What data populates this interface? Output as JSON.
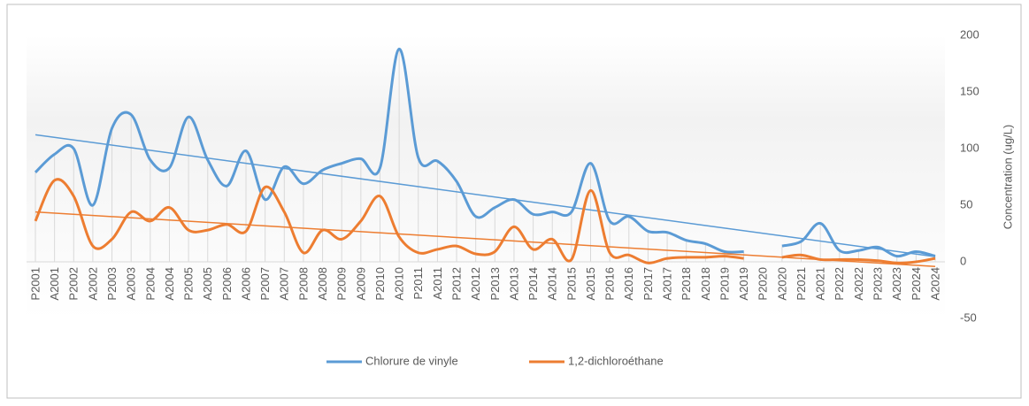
{
  "chart_data": {
    "type": "line",
    "y_axis_label": "Concentration (ug/L)",
    "categories": [
      "P2001",
      "A2001",
      "P2002",
      "A2002",
      "P2003",
      "A2003",
      "P2004",
      "A2004",
      "P2005",
      "A2005",
      "P2006",
      "A2006",
      "P2007",
      "A2007",
      "P2008",
      "A2008",
      "P2009",
      "A2009",
      "P2010",
      "A2010",
      "P2011",
      "A2011",
      "P2012",
      "A2012",
      "P2013",
      "A2013",
      "P2014",
      "A2014",
      "P2015",
      "A2015",
      "P2016",
      "A2016",
      "P2017",
      "A2017",
      "P2018",
      "A2018",
      "P2019",
      "A2019",
      "P2020",
      "A2020",
      "P2021",
      "A2021",
      "P2022",
      "A2022",
      "P2023",
      "A2023",
      "P2024",
      "A2024"
    ],
    "series": [
      {
        "name": "Chlorure de vinyle",
        "color": "#5b9bd5",
        "values": [
          79,
          95,
          100,
          50,
          118,
          130,
          90,
          83,
          128,
          90,
          67,
          98,
          55,
          84,
          69,
          81,
          87,
          91,
          83,
          188,
          92,
          89,
          71,
          40,
          48,
          55,
          42,
          44,
          44,
          87,
          36,
          40,
          27,
          26,
          19,
          16,
          9,
          9,
          null,
          14,
          18,
          34,
          10,
          10,
          13,
          5,
          9,
          5
        ]
      },
      {
        "name": "1,2-dichloroéthane",
        "color": "#ed7d31",
        "values": [
          36,
          72,
          58,
          14,
          20,
          44,
          36,
          48,
          28,
          28,
          33,
          27,
          66,
          44,
          8,
          28,
          20,
          36,
          58,
          22,
          8,
          11,
          14,
          7,
          9,
          31,
          11,
          20,
          2,
          63,
          8,
          6,
          -1,
          3,
          4,
          4,
          5,
          3,
          null,
          4,
          6,
          2,
          2,
          2,
          1,
          -1,
          0,
          3
        ]
      }
    ],
    "ylim": [
      -50,
      200
    ],
    "yticks": [
      -50,
      0,
      50,
      100,
      150,
      200
    ],
    "y_axis_side": "right",
    "smooth": true,
    "trendline": true,
    "drop_lines": true,
    "legend": "bottom"
  }
}
